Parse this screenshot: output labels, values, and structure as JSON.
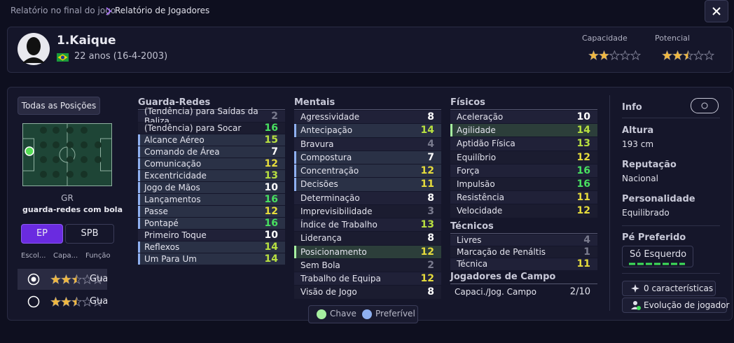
{
  "header": {
    "breadcrumb": [
      "Relatório no final do jogo",
      "Relatório de Jogadores"
    ]
  },
  "player": {
    "name": "1.Kaique",
    "age": "22 anos (16-4-2003)",
    "capacity_label": "Capacidade",
    "capacity_stars": 2,
    "potential_label": "Potencial",
    "potential_stars": 2.5
  },
  "positions": {
    "button": "Todas as Posições",
    "position": "GR",
    "role": "guarda-redes com bola",
    "tabs": [
      "EP",
      "SPB"
    ],
    "columns": [
      "Escol...",
      "Capa...",
      "Função"
    ],
    "rows": [
      {
        "stars": 2.5,
        "role": "Gua"
      },
      {
        "stars": 2.5,
        "role": "Gua"
      }
    ]
  },
  "groups": [
    {
      "title": "Guarda-Redes",
      "attributes": [
        {
          "name": "(Tendência) para Saídas da Baliza",
          "value": 2
        },
        {
          "name": "(Tendência) para Socar",
          "value": 16
        },
        {
          "name": "Alcance Aéreo",
          "value": 15,
          "highlight": "pref"
        },
        {
          "name": "Comando de Área",
          "value": 7,
          "highlight": "pref"
        },
        {
          "name": "Comunicação",
          "value": 12,
          "highlight": "pref"
        },
        {
          "name": "Excentricidade",
          "value": 13,
          "highlight": "pref"
        },
        {
          "name": "Jogo de Mãos",
          "value": 10,
          "highlight": "pref"
        },
        {
          "name": "Lançamentos",
          "value": 16,
          "highlight": "pref"
        },
        {
          "name": "Passe",
          "value": 12,
          "highlight": "pref"
        },
        {
          "name": "Pontapé",
          "value": 16,
          "highlight": "pref"
        },
        {
          "name": "Primeiro Toque",
          "value": 10
        },
        {
          "name": "Reflexos",
          "value": 14,
          "highlight": "pref"
        },
        {
          "name": "Um Para Um",
          "value": 14,
          "highlight": "pref"
        }
      ]
    },
    {
      "title": "Mentais",
      "attributes": [
        {
          "name": "Agressividade",
          "value": 8
        },
        {
          "name": "Antecipação",
          "value": 14,
          "highlight": "pref"
        },
        {
          "name": "Bravura",
          "value": 4
        },
        {
          "name": "Compostura",
          "value": 7,
          "highlight": "pref"
        },
        {
          "name": "Concentração",
          "value": 12,
          "highlight": "pref"
        },
        {
          "name": "Decisões",
          "value": 11,
          "highlight": "pref"
        },
        {
          "name": "Determinação",
          "value": 8
        },
        {
          "name": "Imprevisibilidade",
          "value": 3
        },
        {
          "name": "Índice de Trabalho",
          "value": 13
        },
        {
          "name": "Liderança",
          "value": 8
        },
        {
          "name": "Posicionamento",
          "value": 12,
          "highlight": "key"
        },
        {
          "name": "Sem Bola",
          "value": 2
        },
        {
          "name": "Trabalho de Equipa",
          "value": 12
        },
        {
          "name": "Visão de Jogo",
          "value": 8
        }
      ]
    },
    {
      "title": "Físicos",
      "attributes": [
        {
          "name": "Aceleração",
          "value": 10
        },
        {
          "name": "Agilidade",
          "value": 14,
          "highlight": "key"
        },
        {
          "name": "Aptidão Física",
          "value": 13
        },
        {
          "name": "Equilíbrio",
          "value": 12
        },
        {
          "name": "Força",
          "value": 16
        },
        {
          "name": "Impulsão",
          "value": 16
        },
        {
          "name": "Resistência",
          "value": 11
        },
        {
          "name": "Velocidade",
          "value": 12
        }
      ]
    },
    {
      "title": "Técnicos",
      "attributes": [
        {
          "name": "Livres",
          "value": 4
        },
        {
          "name": "Marcação de Penáltis",
          "value": 1
        },
        {
          "name": "Técnica",
          "value": 11
        }
      ]
    }
  ],
  "outfield": {
    "title": "Jogadores de Campo",
    "label": "Capaci./Jog. Campo",
    "value": "2/10"
  },
  "legend": [
    "Chave",
    "Preferível"
  ],
  "info": {
    "title": "Info",
    "height_label": "Altura",
    "height": "193 cm",
    "reputation_label": "Reputação",
    "reputation": "Nacional",
    "personality_label": "Personalidade",
    "personality": "Equilibrado",
    "foot_label": "Pé Preferido",
    "foot": "Só Esquerdo",
    "traits": "0 características",
    "evolution": "Evolução de jogador"
  }
}
